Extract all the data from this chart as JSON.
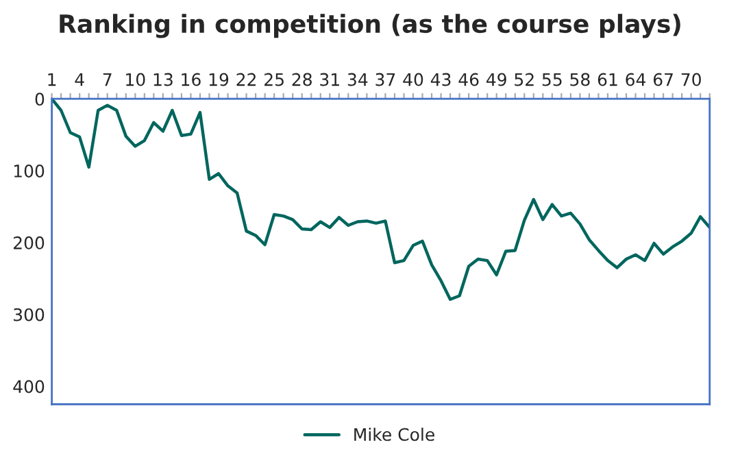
{
  "chart_data": {
    "type": "line",
    "title": "Ranking in competition (as the course plays)",
    "categories": [
      "1",
      null,
      null,
      "4",
      null,
      null,
      "7",
      null,
      null,
      "10",
      null,
      null,
      "13",
      null,
      null,
      "16",
      null,
      null,
      "19",
      null,
      null,
      "22",
      null,
      null,
      "25",
      null,
      null,
      "28",
      null,
      null,
      "31",
      null,
      null,
      "34",
      null,
      null,
      "37",
      null,
      null,
      "40",
      null,
      null,
      "43",
      null,
      null,
      "46",
      null,
      null,
      "49",
      null,
      null,
      "52",
      null,
      null,
      "55",
      null,
      null,
      "58",
      null,
      null,
      "61",
      null,
      null,
      "64",
      null,
      null,
      "67",
      null,
      null,
      "70",
      null,
      null
    ],
    "series": [
      {
        "name": "Mike Cole",
        "color": "#00665e",
        "values": [
          0,
          16,
          47,
          53,
          95,
          16,
          9,
          16,
          52,
          66,
          58,
          33,
          45,
          16,
          51,
          49,
          19,
          112,
          104,
          121,
          131,
          184,
          190,
          203,
          161,
          163,
          168,
          181,
          182,
          171,
          179,
          165,
          176,
          171,
          170,
          173,
          170,
          228,
          225,
          204,
          198,
          231,
          253,
          279,
          274,
          233,
          223,
          225,
          245,
          212,
          211,
          169,
          140,
          168,
          147,
          163,
          159,
          174,
          196,
          211,
          225,
          235,
          223,
          217,
          225,
          201,
          216,
          206,
          198,
          187,
          164,
          179
        ]
      }
    ],
    "ylim": [
      425,
      0
    ],
    "yticks": [
      0,
      100,
      200,
      300,
      400
    ],
    "legend": "bottom",
    "grid": false,
    "marker": "none",
    "line_style": "solid"
  }
}
